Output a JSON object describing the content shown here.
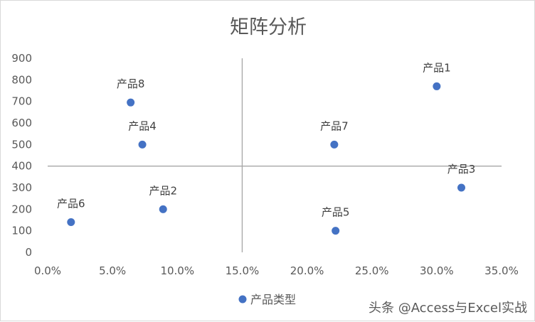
{
  "chart_data": {
    "type": "scatter",
    "title": "矩阵分析",
    "xlabel": "",
    "ylabel": "",
    "xlim": [
      0,
      0.35
    ],
    "ylim": [
      0,
      900
    ],
    "x_ticks": [
      "0.0%",
      "5.0%",
      "10.0%",
      "15.0%",
      "20.0%",
      "25.0%",
      "30.0%",
      "35.0%"
    ],
    "y_ticks": [
      "0",
      "100",
      "200",
      "300",
      "400",
      "500",
      "600",
      "700",
      "800",
      "900"
    ],
    "x_tick_values": [
      0,
      0.05,
      0.1,
      0.15,
      0.2,
      0.25,
      0.3,
      0.35
    ],
    "y_tick_values": [
      0,
      100,
      200,
      300,
      400,
      500,
      600,
      700,
      800,
      900
    ],
    "grid": false,
    "quadrant_lines": {
      "x": 0.15,
      "y": 400
    },
    "legend_position": "bottom",
    "series": [
      {
        "name": "产品类型",
        "color": "#4472C4",
        "points": [
          {
            "label": "产品1",
            "x": 0.3,
            "y": 770
          },
          {
            "label": "产品2",
            "x": 0.089,
            "y": 200
          },
          {
            "label": "产品3",
            "x": 0.319,
            "y": 300
          },
          {
            "label": "产品4",
            "x": 0.073,
            "y": 500
          },
          {
            "label": "产品5",
            "x": 0.222,
            "y": 100
          },
          {
            "label": "产品6",
            "x": 0.018,
            "y": 140
          },
          {
            "label": "产品7",
            "x": 0.221,
            "y": 500
          },
          {
            "label": "产品8",
            "x": 0.064,
            "y": 695
          }
        ]
      }
    ]
  },
  "watermark": "头条 @Access与Excel实战",
  "colors": {
    "axis_line": "#a6a6a6",
    "text": "#595959"
  }
}
